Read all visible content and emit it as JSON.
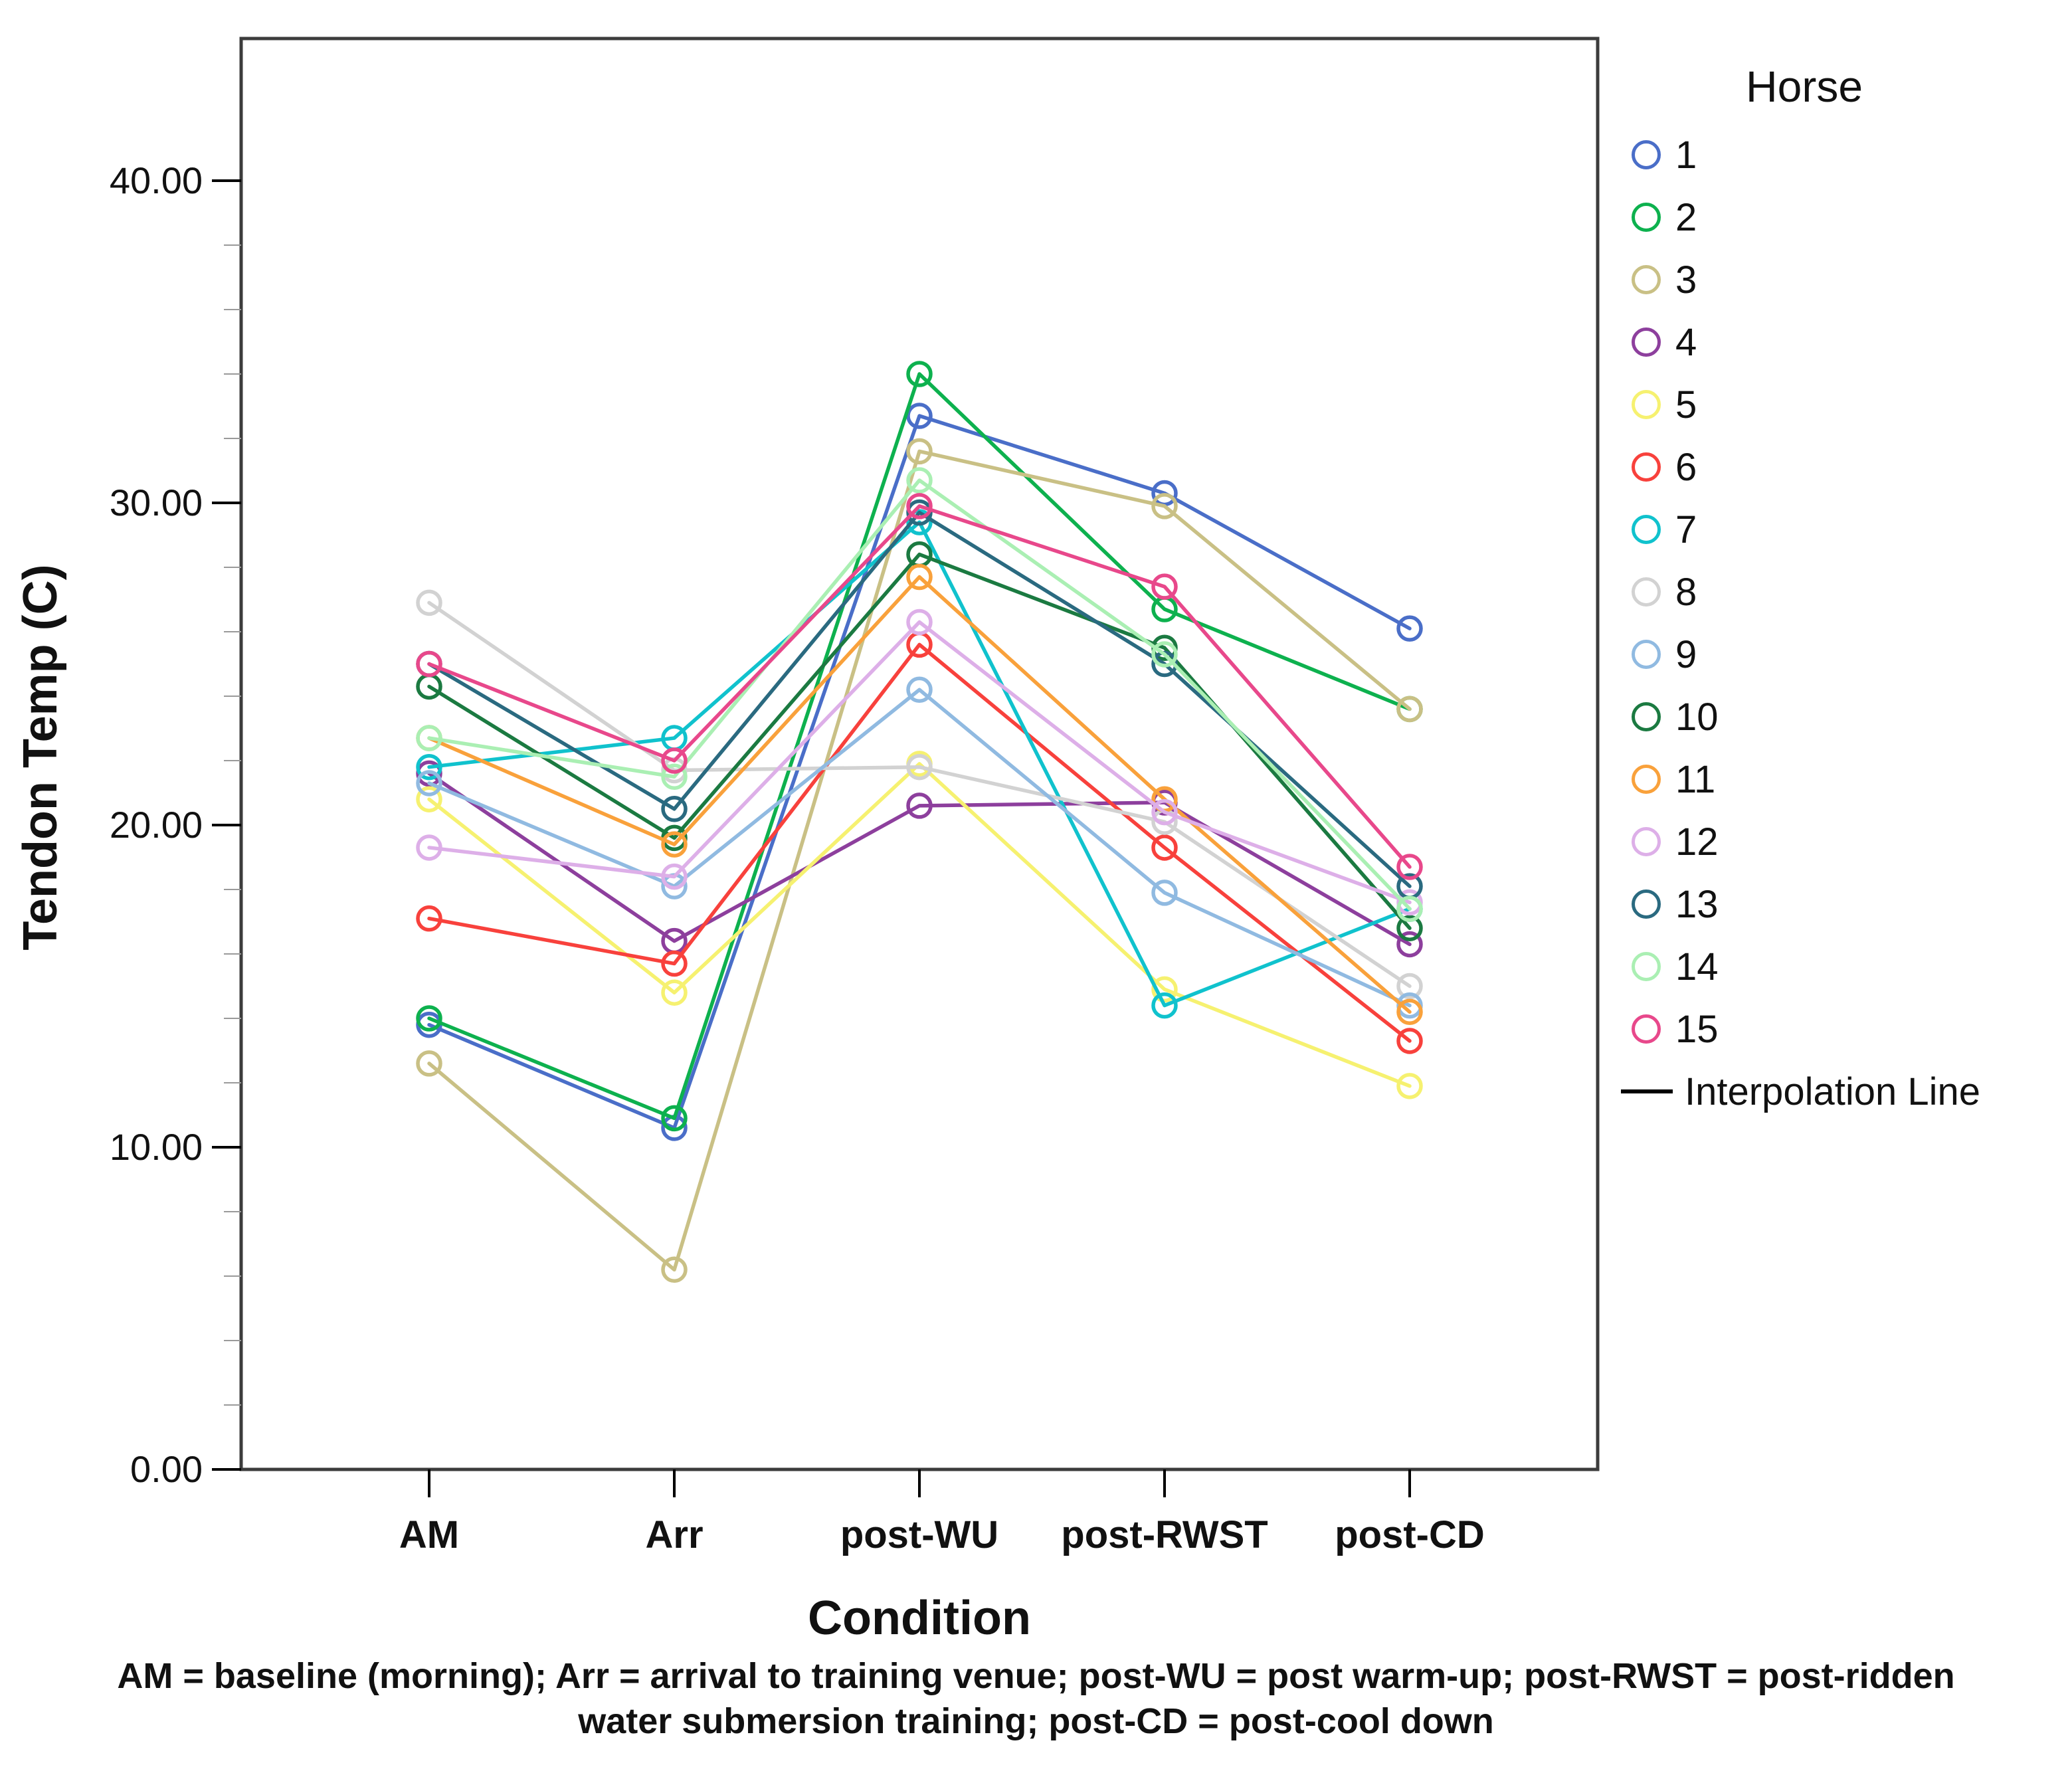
{
  "chart_data": {
    "type": "line",
    "xlabel": "Condition",
    "ylabel": "Tendon Temp (C)",
    "categories": [
      "AM",
      "Arr",
      "post-WU",
      "post-RWST",
      "post-CD"
    ],
    "ylim": [
      0,
      40
    ],
    "yticks": [
      0,
      10,
      20,
      30,
      40
    ],
    "ytick_labels": [
      "0.00",
      "10.00",
      "20.00",
      "30.00",
      "40.00"
    ],
    "minor_tick_step": 2,
    "grid": false,
    "legend_title": "Horse",
    "legend_position": "right",
    "interpolation_label": "Interpolation Line",
    "series": [
      {
        "name": "1",
        "color": "#4a6ec8",
        "values": [
          13.8,
          10.6,
          32.7,
          30.3,
          26.1
        ]
      },
      {
        "name": "2",
        "color": "#0db14e",
        "values": [
          14.0,
          10.9,
          34.0,
          26.7,
          23.6
        ]
      },
      {
        "name": "3",
        "color": "#c9c085",
        "values": [
          12.6,
          6.2,
          31.6,
          29.9,
          23.6
        ]
      },
      {
        "name": "4",
        "color": "#8d3f9d",
        "values": [
          21.6,
          16.4,
          20.6,
          20.7,
          16.3
        ]
      },
      {
        "name": "5",
        "color": "#f6f170",
        "values": [
          20.8,
          14.8,
          21.9,
          14.9,
          11.9
        ]
      },
      {
        "name": "6",
        "color": "#f8413c",
        "values": [
          17.1,
          15.7,
          25.6,
          19.3,
          13.3
        ]
      },
      {
        "name": "7",
        "color": "#10c2cd",
        "values": [
          21.8,
          22.7,
          29.4,
          14.4,
          17.4
        ]
      },
      {
        "name": "8",
        "color": "#d2d2d2",
        "values": [
          26.9,
          21.7,
          21.8,
          20.1,
          15.0
        ]
      },
      {
        "name": "9",
        "color": "#90bae1",
        "values": [
          21.3,
          18.1,
          24.2,
          17.9,
          14.4
        ]
      },
      {
        "name": "10",
        "color": "#1b7a41",
        "values": [
          24.3,
          19.6,
          28.4,
          25.5,
          16.8
        ]
      },
      {
        "name": "11",
        "color": "#f9a13b",
        "values": [
          22.7,
          19.4,
          27.7,
          20.8,
          14.2
        ]
      },
      {
        "name": "12",
        "color": "#ddafe8",
        "values": [
          19.3,
          18.4,
          26.3,
          20.4,
          17.6
        ]
      },
      {
        "name": "13",
        "color": "#2a6a80",
        "values": [
          25.0,
          20.5,
          29.7,
          25.0,
          18.1
        ]
      },
      {
        "name": "14",
        "color": "#aaefb3",
        "values": [
          22.7,
          21.5,
          30.7,
          25.3,
          17.4
        ]
      },
      {
        "name": "15",
        "color": "#e8488b",
        "values": [
          25.0,
          22.0,
          29.9,
          27.4,
          18.7
        ]
      }
    ]
  },
  "caption": {
    "line1": "AM = baseline (morning); Arr = arrival to training venue; post-WU = post warm-up; post-RWST = post-ridden",
    "line2": "water submersion training; post-CD = post-cool down"
  }
}
